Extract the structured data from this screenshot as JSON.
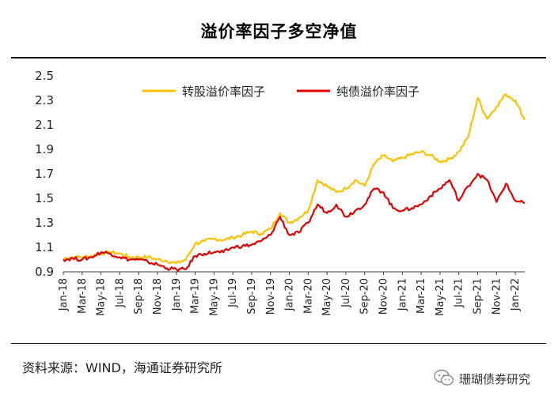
{
  "title": "溢价率因子多空净值",
  "source": "资料来源：WIND，海通证券研究所",
  "watermark": "珊瑚债券研究",
  "colors": {
    "series_a": "#FFC000",
    "series_b": "#E00000",
    "axis": "#404040"
  },
  "chart_data": {
    "type": "line",
    "title": "溢价率因子多空净值",
    "xlabel": "",
    "ylabel": "",
    "ylim": [
      0.9,
      2.5
    ],
    "yticks": [
      0.9,
      1.1,
      1.3,
      1.5,
      1.7,
      1.9,
      2.1,
      2.3,
      2.5
    ],
    "xlim": [
      0,
      49
    ],
    "xticks": [
      "Jan-18",
      "Mar-18",
      "May-18",
      "Jul-18",
      "Sep-18",
      "Nov-18",
      "Jan-19",
      "Mar-19",
      "May-19",
      "Jul-19",
      "Sep-19",
      "Nov-19",
      "Jan-20",
      "Mar-20",
      "May-20",
      "Jul-20",
      "Sep-20",
      "Nov-20",
      "Jan-21",
      "Mar-21",
      "May-21",
      "Jul-21",
      "Sep-21",
      "Nov-21",
      "Jan-22"
    ],
    "legend": [
      "转股溢价率因子",
      "纯债溢价率因子"
    ],
    "legend_position": "top",
    "grid": false,
    "series": [
      {
        "name": "转股溢价率因子",
        "x": [
          0,
          1,
          2,
          3,
          4,
          5,
          6,
          7,
          8,
          9,
          10,
          11,
          12,
          13,
          14,
          15,
          16,
          17,
          18,
          19,
          20,
          21,
          22,
          23,
          24,
          25,
          26,
          27,
          28,
          29,
          30,
          31,
          32,
          33,
          34,
          35,
          36,
          37,
          38,
          39,
          40,
          41,
          42,
          43,
          44,
          45,
          46,
          47,
          48,
          49
        ],
        "values": [
          1.01,
          1.02,
          1.02,
          1.03,
          1.05,
          1.06,
          1.05,
          1.02,
          1.02,
          1.02,
          1.0,
          0.99,
          0.97,
          1.0,
          1.13,
          1.15,
          1.17,
          1.16,
          1.18,
          1.2,
          1.23,
          1.21,
          1.25,
          1.38,
          1.3,
          1.34,
          1.4,
          1.65,
          1.6,
          1.55,
          1.58,
          1.65,
          1.6,
          1.78,
          1.85,
          1.8,
          1.83,
          1.86,
          1.88,
          1.85,
          1.8,
          1.82,
          1.88,
          2.0,
          2.32,
          2.15,
          2.25,
          2.35,
          2.3,
          2.14
        ]
      },
      {
        "name": "纯债溢价率因子",
        "x": [
          0,
          1,
          2,
          3,
          4,
          5,
          6,
          7,
          8,
          9,
          10,
          11,
          12,
          13,
          14,
          15,
          16,
          17,
          18,
          19,
          20,
          21,
          22,
          23,
          24,
          25,
          26,
          27,
          28,
          29,
          30,
          31,
          32,
          33,
          34,
          35,
          36,
          37,
          38,
          39,
          40,
          41,
          42,
          43,
          44,
          45,
          46,
          47,
          48,
          49
        ],
        "values": [
          1.0,
          1.01,
          1.0,
          1.02,
          1.06,
          1.05,
          1.02,
          1.0,
          1.0,
          0.98,
          0.96,
          0.93,
          0.92,
          0.92,
          1.03,
          1.05,
          1.06,
          1.06,
          1.1,
          1.11,
          1.12,
          1.15,
          1.2,
          1.35,
          1.2,
          1.22,
          1.3,
          1.45,
          1.38,
          1.45,
          1.35,
          1.4,
          1.45,
          1.58,
          1.55,
          1.42,
          1.4,
          1.42,
          1.45,
          1.52,
          1.58,
          1.65,
          1.48,
          1.6,
          1.7,
          1.65,
          1.47,
          1.62,
          1.48,
          1.46
        ]
      }
    ]
  }
}
